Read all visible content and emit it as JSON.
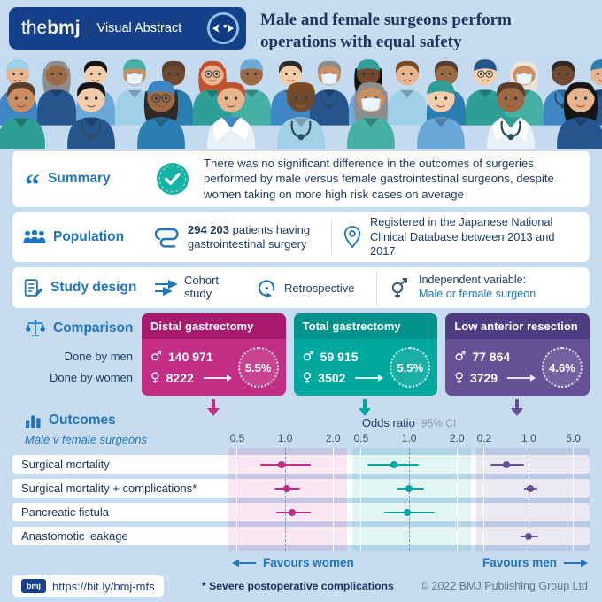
{
  "theme": {
    "background": "#c8dcf0",
    "bmj_navy": "#14418a",
    "accent_blue": "#2175bc",
    "text_navy": "#16325c",
    "check_teal": "#15b2a5",
    "pink": "#c22e84",
    "pink_dark": "#a81a6d",
    "teal": "#00a89d",
    "teal_dark": "#00938b",
    "purple": "#665197",
    "purple_dark": "#4e3d82"
  },
  "header": {
    "logo_the": "the",
    "logo_bmj": "bmj",
    "logo_label": "Visual Abstract",
    "title": "Male and female surgeons perform operations with equal safety"
  },
  "summary": {
    "label": "Summary",
    "text": "There was no significant difference in the outcomes of surgeries performed by male versus female gastrointestinal surgeons, despite women taking on more high risk cases on average"
  },
  "population": {
    "label": "Population",
    "count": "294 203",
    "count_rest": " patients having gastrointestinal surgery",
    "registry": "Registered in the Japanese National Clinical Database between 2013 and 2017"
  },
  "study_design": {
    "label": "Study design",
    "cohort": "Cohort study",
    "retrospective": "Retrospective",
    "independent_label": "Independent variable:",
    "independent_value": "Male or female surgeon"
  },
  "comparison": {
    "label": "Comparison",
    "done_by_men": "Done by men",
    "done_by_women": "Done by women",
    "groups": [
      {
        "name": "Distal gastrectomy",
        "men": "140 971",
        "women": "8222",
        "women_share": "5.5%"
      },
      {
        "name": "Total gastrectomy",
        "men": "59 915",
        "women": "3502",
        "women_share": "5.5%"
      },
      {
        "name": "Low anterior resection",
        "men": "77 864",
        "women": "3729",
        "women_share": "4.6%"
      }
    ]
  },
  "icons": {
    "male_symbol": "♂",
    "female_symbol": "♀"
  },
  "outcomes": {
    "label": "Outcomes",
    "sublabel": "Male v female surgeons",
    "axis_title": "Odds ratio",
    "axis_ci": "95% CI",
    "favours_women": "Favours women",
    "favours_men": "Favours men"
  },
  "chart_data": {
    "type": "scatter",
    "variant": "forest-plot",
    "scale": "log",
    "legend_position": "none",
    "rows": [
      "Surgical mortality",
      "Surgical mortality + complications*",
      "Pancreatic fistula",
      "Anastomotic leakage"
    ],
    "panels": [
      {
        "name": "Distal gastrectomy",
        "color": "#c22e84",
        "ticks": [
          "0.5",
          "1.0",
          "2.0"
        ],
        "xlim": [
          0.44,
          2.45
        ],
        "points": [
          {
            "row": "Surgical mortality",
            "or": 0.95,
            "ci": [
              0.7,
              1.45
            ]
          },
          {
            "row": "Surgical mortality + complications*",
            "or": 1.03,
            "ci": [
              0.86,
              1.25
            ]
          },
          {
            "row": "Pancreatic fistula",
            "or": 1.1,
            "ci": [
              0.88,
              1.45
            ]
          },
          null
        ]
      },
      {
        "name": "Total gastrectomy",
        "color": "#00a89d",
        "ticks": [
          "0.5",
          "1.0",
          "2.0"
        ],
        "xlim": [
          0.44,
          2.45
        ],
        "points": [
          {
            "row": "Surgical mortality",
            "or": 0.8,
            "ci": [
              0.55,
              1.15
            ]
          },
          {
            "row": "Surgical mortality + complications*",
            "or": 1.0,
            "ci": [
              0.83,
              1.25
            ]
          },
          {
            "row": "Pancreatic fistula",
            "or": 0.97,
            "ci": [
              0.7,
              1.45
            ]
          },
          null
        ]
      },
      {
        "name": "Low anterior resection",
        "color": "#665197",
        "ticks": [
          "0.2",
          "1.0",
          "5.0"
        ],
        "xlim": [
          0.15,
          9.0
        ],
        "points": [
          {
            "row": "Surgical mortality",
            "or": 0.45,
            "ci": [
              0.25,
              0.85
            ]
          },
          {
            "row": "Surgical mortality + complications*",
            "or": 1.05,
            "ci": [
              0.85,
              1.35
            ]
          },
          null,
          {
            "row": "Anastomotic leakage",
            "or": 1.0,
            "ci": [
              0.75,
              1.4
            ]
          }
        ]
      }
    ]
  },
  "footer": {
    "url": "https://bit.ly/bmj-mfs",
    "note": "* Severe postoperative complications",
    "copyright": "© 2022 BMJ Publishing Group Ltd"
  }
}
